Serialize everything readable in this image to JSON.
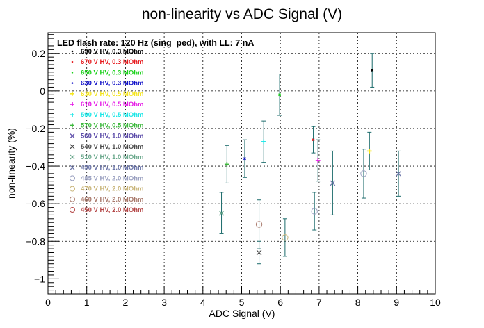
{
  "chart_data": {
    "type": "scatter",
    "title": "non-linearity vs ADC Signal (V)",
    "xlabel": "ADC Signal (V)",
    "ylabel": "non-linearity (%)",
    "xlim": [
      0,
      10
    ],
    "ylim": [
      -1.08,
      0.31
    ],
    "xticks": [
      0,
      1,
      2,
      3,
      4,
      5,
      6,
      7,
      8,
      9,
      10
    ],
    "yticks": [
      -1,
      -0.8,
      -0.6,
      -0.4,
      -0.2,
      0,
      0.2
    ],
    "xtick_labels": [
      "0",
      "1",
      "2",
      "3",
      "4",
      "5",
      "6",
      "7",
      "8",
      "9",
      "10"
    ],
    "ytick_labels": [
      "−1",
      "−0.8",
      "−0.6",
      "−0.4",
      "−0.2",
      "0",
      "0.2"
    ],
    "grid": true,
    "legend_header": "LED flash rate: 120 Hz  (sing_ped), with LL: 7 nA",
    "legend_placement": "top-left",
    "error_bar_color": "#1b6b6b",
    "series": [
      {
        "name": "690 V HV, 0.3 MOhm",
        "color": "#000000",
        "marker": "dot",
        "points": [
          {
            "x": 8.37,
            "y": 0.11,
            "err": 0.09
          }
        ]
      },
      {
        "name": "670 V HV, 0.3 MOhm",
        "color": "#e6191d",
        "marker": "dot",
        "points": [
          {
            "x": 6.85,
            "y": -0.26,
            "err": 0.07
          }
        ]
      },
      {
        "name": "650 V HV, 0.3 MOhm",
        "color": "#19d119",
        "marker": "dot",
        "points": [
          {
            "x": 5.98,
            "y": -0.02,
            "err": 0.11
          }
        ]
      },
      {
        "name": "630 V HV, 0.3 MOhm",
        "color": "#1010c8",
        "marker": "dot",
        "points": [
          {
            "x": 5.08,
            "y": -0.36,
            "err": 0.1
          }
        ]
      },
      {
        "name": "630 V HV, 0.5 MOhm",
        "color": "#f5e61e",
        "marker": "plus",
        "points": [
          {
            "x": 8.3,
            "y": -0.32,
            "err": 0.1
          }
        ]
      },
      {
        "name": "610 V HV, 0.5 MOhm",
        "color": "#e619e6",
        "marker": "plus",
        "points": [
          {
            "x": 6.97,
            "y": -0.37,
            "err": 0.11
          }
        ]
      },
      {
        "name": "590 V HV, 0.5 MOhm",
        "color": "#19e6e6",
        "marker": "plus",
        "points": [
          {
            "x": 5.57,
            "y": -0.27,
            "err": 0.11
          }
        ]
      },
      {
        "name": "570 V HV, 0.5 MOhm",
        "color": "#3cb83c",
        "marker": "plus",
        "points": [
          {
            "x": 4.62,
            "y": -0.39,
            "err": 0.1
          }
        ]
      },
      {
        "name": "560 V HV, 1.0 MOhm",
        "color": "#5a4aa8",
        "marker": "cross",
        "points": []
      },
      {
        "name": "540 V HV, 1.0 MOhm",
        "color": "#4a4a4a",
        "marker": "cross",
        "points": [
          {
            "x": 5.45,
            "y": -0.86,
            "err": 0.06
          }
        ]
      },
      {
        "name": "510 V HV, 1.0 MOhm",
        "color": "#6aa88c",
        "marker": "cross",
        "points": [
          {
            "x": 4.48,
            "y": -0.65,
            "err": 0.11
          }
        ]
      },
      {
        "name": "490 V HV, 1.0 MOhm",
        "color": "#6a74a8",
        "marker": "cross",
        "points": [
          {
            "x": 7.35,
            "y": -0.49,
            "err": 0.17
          },
          {
            "x": 9.05,
            "y": -0.44,
            "err": 0.12
          }
        ]
      },
      {
        "name": "485 V HV, 2.0 MOhm",
        "color": "#9aa0c0",
        "marker": "circle",
        "points": [
          {
            "x": 6.88,
            "y": -0.64,
            "err": 0.1
          },
          {
            "x": 8.15,
            "y": -0.44,
            "err": 0.13
          }
        ]
      },
      {
        "name": "470 V HV, 2.0 MOhm",
        "color": "#c8b478",
        "marker": "circle",
        "points": [
          {
            "x": 6.12,
            "y": -0.78,
            "err": 0.1
          }
        ]
      },
      {
        "name": "460 V HV, 2.0 MOhm",
        "color": "#a8786a",
        "marker": "circle",
        "points": [
          {
            "x": 5.45,
            "y": -0.71,
            "err": 0.13
          }
        ]
      },
      {
        "name": "450 V HV, 2.0 MOhm",
        "color": "#b44646",
        "marker": "circle",
        "points": []
      }
    ]
  }
}
